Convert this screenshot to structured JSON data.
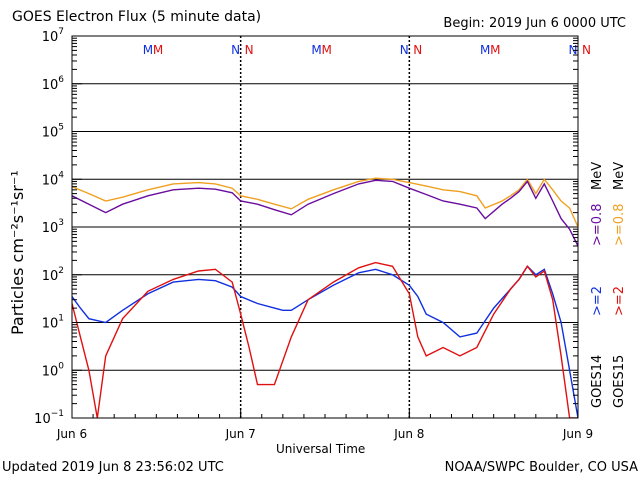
{
  "header": {
    "title": "GOES Electron Flux (5 minute data)",
    "begin": "Begin: 2019 Jun 6 0000 UTC"
  },
  "footer": {
    "updated": "Updated 2019 Jun  8 23:56:02 UTC",
    "credit": "NOAA/SWPC Boulder, CO USA"
  },
  "colors": {
    "goes14_low": "#6a0d9e",
    "goes15_low": "#f0a020",
    "goes14_high": "#1030e0",
    "goes15_high": "#e01010",
    "marker_M14": "#1030e0",
    "marker_M15": "#e01010"
  },
  "chart_data": {
    "type": "line",
    "title": "GOES Electron Flux (5 minute data)",
    "xlabel": "Universal Time",
    "ylabel": "Particles cm⁻²s⁻¹sr⁻¹",
    "yscale": "log",
    "ylim_exp": [
      -1,
      7
    ],
    "ytick_exponents": [
      -1,
      0,
      1,
      2,
      3,
      4,
      5,
      6,
      7
    ],
    "x_tick_labels": [
      "Jun 6",
      "Jun 7",
      "Jun 8",
      "Jun 9"
    ],
    "x_range_days": [
      0,
      3
    ],
    "threshold_line": 1000,
    "grid": true,
    "legend_right": {
      "goes14": "GOES14",
      "goes15": "GOES15",
      "high14": ">=2",
      "high15": ">=2",
      "low14": ">=0.8",
      "low15": ">=0.8",
      "unit": "MeV"
    },
    "markers": [
      {
        "label": "M",
        "day": 0.45,
        "sat": "14"
      },
      {
        "label": "M",
        "day": 0.51,
        "sat": "15"
      },
      {
        "label": "N",
        "day": 0.97,
        "sat": "14"
      },
      {
        "label": "N",
        "day": 1.05,
        "sat": "15"
      },
      {
        "label": "M",
        "day": 1.45,
        "sat": "14"
      },
      {
        "label": "M",
        "day": 1.51,
        "sat": "15"
      },
      {
        "label": "N",
        "day": 1.97,
        "sat": "14"
      },
      {
        "label": "N",
        "day": 2.05,
        "sat": "15"
      },
      {
        "label": "M",
        "day": 2.45,
        "sat": "14"
      },
      {
        "label": "M",
        "day": 2.51,
        "sat": "15"
      },
      {
        "label": "N",
        "day": 2.97,
        "sat": "14"
      },
      {
        "label": "N",
        "day": 3.05,
        "sat": "15"
      }
    ],
    "series": [
      {
        "key": "goes15_low",
        "x": [
          0,
          0.1,
          0.2,
          0.3,
          0.45,
          0.6,
          0.75,
          0.85,
          0.95,
          1.0,
          1.1,
          1.2,
          1.3,
          1.4,
          1.55,
          1.7,
          1.8,
          1.9,
          2.0,
          2.1,
          2.2,
          2.3,
          2.4,
          2.45,
          2.55,
          2.6,
          2.65,
          2.7,
          2.75,
          2.8,
          2.85,
          2.9,
          2.95,
          3.0
        ],
        "y": [
          7000,
          5000,
          3500,
          4200,
          6000,
          8000,
          8500,
          8000,
          6500,
          4500,
          3800,
          3000,
          2400,
          3800,
          6000,
          9000,
          10500,
          10000,
          8500,
          7200,
          6000,
          5500,
          4500,
          2500,
          3500,
          4500,
          6000,
          10000,
          5000,
          10000,
          6000,
          3500,
          2500,
          1000
        ]
      },
      {
        "key": "goes14_low",
        "x": [
          0,
          0.1,
          0.2,
          0.3,
          0.45,
          0.6,
          0.75,
          0.85,
          0.95,
          1.0,
          1.1,
          1.2,
          1.3,
          1.4,
          1.55,
          1.7,
          1.8,
          1.9,
          2.0,
          2.1,
          2.2,
          2.3,
          2.4,
          2.45,
          2.55,
          2.6,
          2.65,
          2.7,
          2.75,
          2.8,
          2.85,
          2.9,
          2.95,
          3.0
        ],
        "y": [
          4500,
          3000,
          2000,
          3000,
          4500,
          6000,
          6500,
          6200,
          5200,
          3500,
          3000,
          2300,
          1800,
          3000,
          5000,
          8000,
          9500,
          9000,
          6500,
          4800,
          3500,
          3000,
          2500,
          1500,
          3000,
          4000,
          5500,
          9000,
          4000,
          8000,
          3500,
          1500,
          900,
          400
        ]
      },
      {
        "key": "goes14_high",
        "x": [
          0,
          0.05,
          0.1,
          0.2,
          0.3,
          0.45,
          0.6,
          0.75,
          0.85,
          0.95,
          1.0,
          1.1,
          1.2,
          1.25,
          1.3,
          1.4,
          1.55,
          1.7,
          1.8,
          1.9,
          2.0,
          2.05,
          2.1,
          2.2,
          2.3,
          2.4,
          2.5,
          2.6,
          2.65,
          2.7,
          2.75,
          2.8,
          2.85,
          2.9,
          2.95,
          3.0
        ],
        "y": [
          35,
          20,
          12,
          10,
          18,
          40,
          70,
          80,
          75,
          55,
          35,
          25,
          20,
          18,
          18,
          30,
          60,
          110,
          130,
          100,
          60,
          35,
          15,
          10,
          5,
          6,
          20,
          50,
          80,
          150,
          100,
          130,
          40,
          10,
          1,
          0.1
        ]
      },
      {
        "key": "goes15_high",
        "x": [
          0,
          0.05,
          0.1,
          0.15,
          0.2,
          0.3,
          0.45,
          0.6,
          0.75,
          0.85,
          0.95,
          1.0,
          1.05,
          1.1,
          1.2,
          1.3,
          1.4,
          1.55,
          1.7,
          1.8,
          1.9,
          2.0,
          2.05,
          2.1,
          2.2,
          2.3,
          2.4,
          2.5,
          2.6,
          2.65,
          2.7,
          2.75,
          2.8,
          2.85,
          2.9,
          2.95,
          3.0
        ],
        "y": [
          25,
          5,
          1,
          0.1,
          2,
          12,
          45,
          80,
          120,
          130,
          70,
          15,
          3,
          0.5,
          0.5,
          5,
          30,
          70,
          140,
          180,
          150,
          40,
          5,
          2,
          3,
          2,
          3,
          15,
          50,
          80,
          150,
          90,
          120,
          30,
          2,
          0.1,
          0.1
        ]
      }
    ]
  }
}
